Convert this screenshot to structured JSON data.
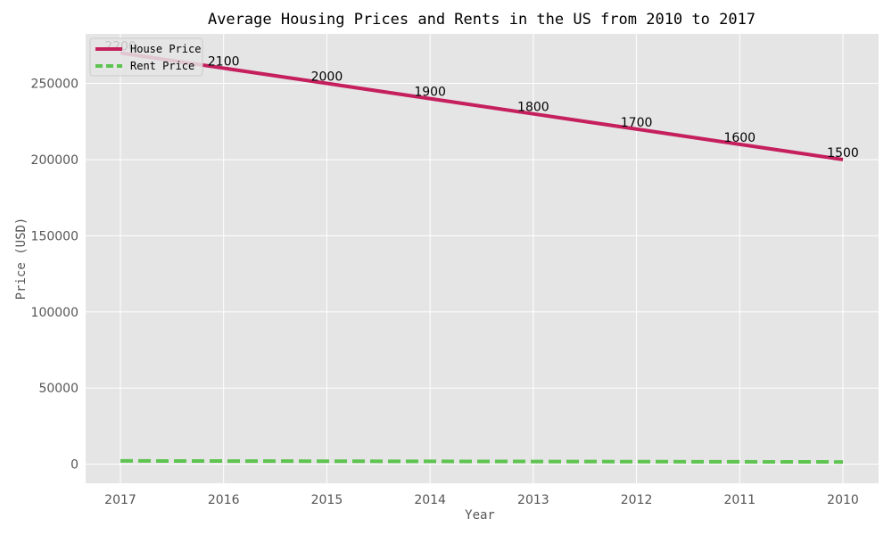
{
  "chart_data": {
    "type": "line",
    "title": "Average Housing Prices and Rents in the US from 2010 to 2017",
    "xlabel": "Year",
    "ylabel": "Price (USD)",
    "categories": [
      "2017",
      "2016",
      "2015",
      "2014",
      "2013",
      "2012",
      "2011",
      "2010"
    ],
    "ylim": [
      -12500,
      282500
    ],
    "yticks": [
      0,
      50000,
      100000,
      150000,
      200000,
      250000
    ],
    "grid": true,
    "legend": "top-left",
    "series": [
      {
        "name": "House Price",
        "values": [
          270000,
          260000,
          250000,
          240000,
          230000,
          220000,
          210000,
          200000
        ],
        "color": "#c51f5d",
        "style": "solid"
      },
      {
        "name": "Rent Price",
        "values": [
          2200,
          2100,
          2000,
          1900,
          1800,
          1700,
          1600,
          1500
        ],
        "color": "#5ec450",
        "style": "dashed",
        "data_labels": [
          "2200",
          "2100",
          "2000",
          "1900",
          "1800",
          "1700",
          "1600",
          "1500"
        ]
      }
    ]
  }
}
